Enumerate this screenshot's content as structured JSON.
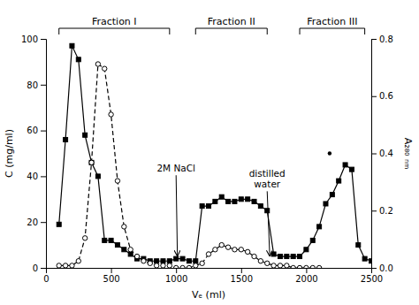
{
  "chart_data": {
    "type": "line",
    "xlabel": "Vₑ (ml)",
    "ylabel": "C (mg/ml)",
    "y2label": "A₂₈₀ ₙₘ",
    "xlim": [
      0,
      2500
    ],
    "xticks": [
      0,
      500,
      1000,
      1500,
      2000,
      2500
    ],
    "ylim": [
      0,
      100
    ],
    "yticks": [
      0,
      20,
      40,
      60,
      80,
      100
    ],
    "y2lim": [
      0,
      0.8
    ],
    "y2ticks": [
      {
        "value": 0,
        "label": "0.0"
      },
      0.2,
      0.4,
      0.6,
      0.8
    ],
    "grid": false,
    "series": [
      {
        "type": "line",
        "color": "#000000",
        "marker": "square",
        "line_style": "solid",
        "x": [
          100,
          150,
          200,
          250,
          300,
          350,
          400,
          450,
          500,
          550,
          600,
          650,
          700,
          750,
          800,
          850,
          900,
          950,
          1000,
          1050,
          1100,
          1150,
          1200,
          1250,
          1300,
          1350,
          1400,
          1450,
          1500,
          1550,
          1600,
          1650,
          1700,
          1750,
          1800,
          1850,
          1900,
          1950,
          2000,
          2050,
          2100,
          2150,
          2200,
          2250,
          2300,
          2350,
          2400,
          2450,
          2500
        ],
        "values": [
          19,
          56,
          97,
          91,
          58,
          46,
          40,
          12,
          12,
          10,
          8,
          6,
          4,
          4,
          3,
          3,
          3,
          3,
          4,
          4,
          3,
          3,
          27,
          27,
          29,
          31,
          29,
          29,
          30,
          30,
          29,
          27,
          25,
          6,
          5,
          5,
          5,
          5,
          8,
          12,
          18,
          28,
          32,
          38,
          45,
          43,
          10,
          4,
          3
        ]
      },
      {
        "type": "line",
        "color": "#000000",
        "marker": "open-circle",
        "line_style": "dashed",
        "x": [
          100,
          150,
          200,
          250,
          300,
          350,
          400,
          450,
          500,
          550,
          600,
          650,
          700,
          750,
          800,
          850,
          900,
          950,
          1000,
          1050,
          1100,
          1150,
          1200,
          1250,
          1300,
          1350,
          1400,
          1450,
          1500,
          1550,
          1600,
          1650,
          1700,
          1750,
          1800,
          1850,
          1900,
          1950,
          2000,
          2050,
          2100
        ],
        "values": [
          1,
          1,
          1,
          3,
          13,
          46,
          89,
          87,
          67,
          38,
          18,
          8,
          5,
          3,
          2,
          1,
          1,
          1,
          0,
          0,
          0,
          1,
          2,
          6,
          8,
          10,
          9,
          8,
          8,
          7,
          5,
          3,
          2,
          1,
          1,
          1,
          0,
          0,
          0,
          0,
          0
        ]
      },
      {
        "type": "scatter",
        "axis": "y2",
        "color": "#000000",
        "marker": "point",
        "x": [
          2180
        ],
        "values": [
          0.4
        ]
      }
    ],
    "fractions": [
      {
        "label": "Fraction I",
        "x": [
          100,
          950
        ]
      },
      {
        "label": "Fraction II",
        "x": [
          1150,
          1700
        ]
      },
      {
        "label": "Fraction III",
        "x": [
          1950,
          2450
        ]
      }
    ],
    "annotations": [
      {
        "text": "2M NaCl",
        "x": 1000,
        "y": 42,
        "arrow_x": 1010,
        "arrow_y": 5
      },
      {
        "text": "distilled\nwater",
        "x": 1700,
        "y": 35,
        "arrow_x": 1720,
        "arrow_y": 5
      }
    ]
  }
}
